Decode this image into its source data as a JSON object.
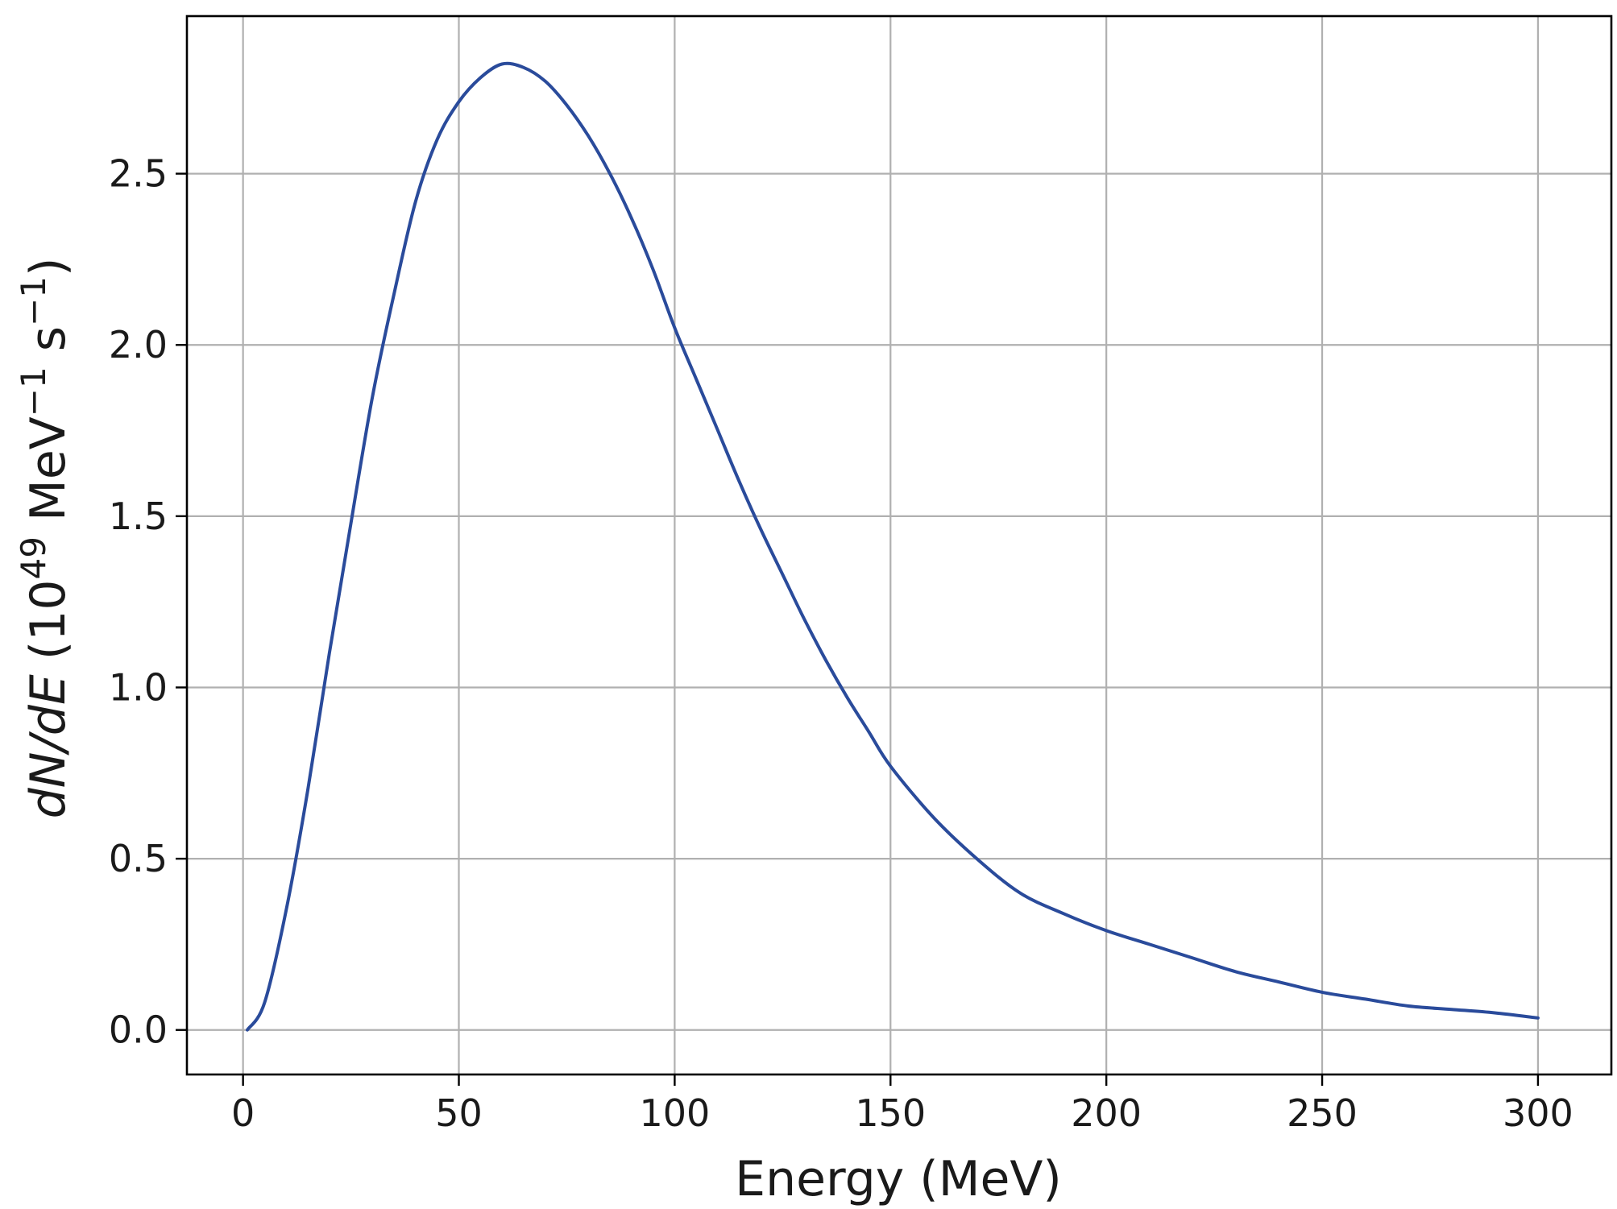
{
  "chart_data": {
    "type": "line",
    "title": "",
    "xlabel": "Energy (MeV)",
    "ylabel": {
      "main": "dN/dE",
      "open_paren": "(10",
      "exp49": "49",
      "mev": " MeV",
      "exp_neg1_a": "−1",
      "s": " s",
      "exp_neg1_b": "−1",
      "close_paren": ")"
    },
    "xlim": [
      -13,
      317
    ],
    "ylim": [
      -0.13,
      2.96
    ],
    "grid": true,
    "legend": "none",
    "xticks": [
      0,
      50,
      100,
      150,
      200,
      250,
      300
    ],
    "xtick_labels": [
      "0",
      "50",
      "100",
      "150",
      "200",
      "250",
      "300"
    ],
    "yticks": [
      0.0,
      0.5,
      1.0,
      1.5,
      2.0,
      2.5
    ],
    "ytick_labels": [
      "0.0",
      "0.5",
      "1.0",
      "1.5",
      "2.0",
      "2.5"
    ],
    "line_color": "#2a4b9b",
    "series": [
      {
        "x": [
          1,
          5,
          10,
          15,
          20,
          25,
          30,
          35,
          40,
          45,
          50,
          55,
          60,
          65,
          70,
          75,
          80,
          85,
          90,
          95,
          100,
          105,
          110,
          115,
          120,
          125,
          130,
          135,
          140,
          145,
          150,
          160,
          170,
          180,
          190,
          200,
          210,
          220,
          230,
          240,
          250,
          260,
          270,
          280,
          290,
          300
        ],
        "values": [
          0.0,
          0.08,
          0.35,
          0.7,
          1.1,
          1.48,
          1.85,
          2.15,
          2.42,
          2.6,
          2.71,
          2.78,
          2.82,
          2.81,
          2.77,
          2.7,
          2.61,
          2.5,
          2.37,
          2.22,
          2.05,
          1.9,
          1.75,
          1.6,
          1.46,
          1.33,
          1.2,
          1.08,
          0.97,
          0.87,
          0.77,
          0.62,
          0.5,
          0.4,
          0.34,
          0.29,
          0.25,
          0.21,
          0.17,
          0.14,
          0.11,
          0.09,
          0.07,
          0.06,
          0.05,
          0.035
        ]
      }
    ]
  }
}
